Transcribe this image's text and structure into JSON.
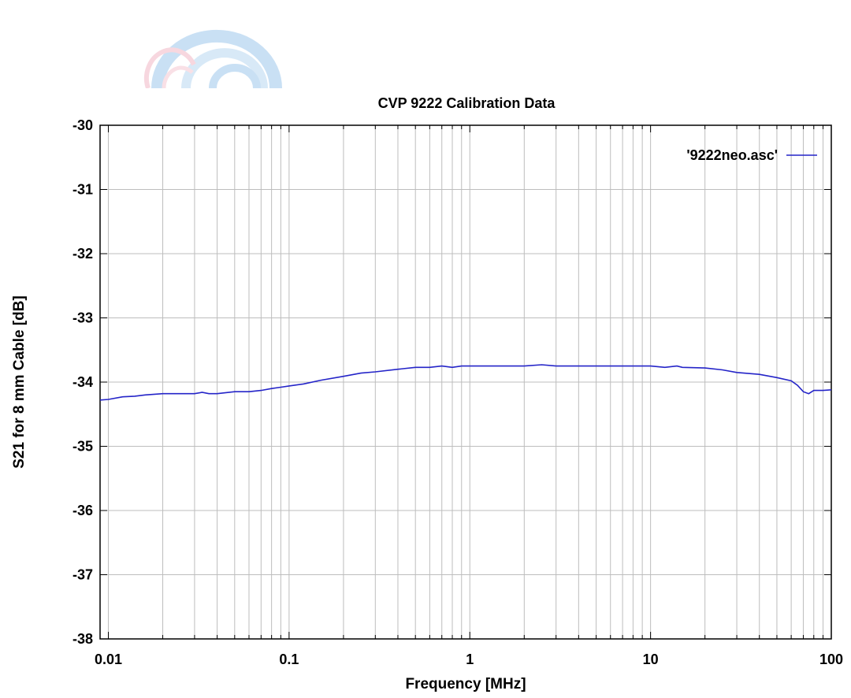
{
  "logo": {
    "name": "watermark-logo"
  },
  "chart_data": {
    "type": "line",
    "title": "CVP 9222 Calibration Data",
    "xlabel": "Frequency [MHz]",
    "ylabel": "S21 for 8 mm Cable [dB]",
    "xscale": "log",
    "xlim": [
      0.009,
      100
    ],
    "ylim": [
      -38,
      -30
    ],
    "xticks": [
      {
        "value": 0.01,
        "label": "0.01"
      },
      {
        "value": 0.1,
        "label": "0.1"
      },
      {
        "value": 1,
        "label": "1"
      },
      {
        "value": 10,
        "label": "10"
      },
      {
        "value": 100,
        "label": "100"
      }
    ],
    "yticks": [
      {
        "value": -30,
        "label": "-30"
      },
      {
        "value": -31,
        "label": "-31"
      },
      {
        "value": -32,
        "label": "-32"
      },
      {
        "value": -33,
        "label": "-33"
      },
      {
        "value": -34,
        "label": "-34"
      },
      {
        "value": -35,
        "label": "-35"
      },
      {
        "value": -36,
        "label": "-36"
      },
      {
        "value": -37,
        "label": "-37"
      },
      {
        "value": -38,
        "label": "-38"
      }
    ],
    "grid": true,
    "legend": {
      "placement": "top-right",
      "color": "#2424c8"
    },
    "series": [
      {
        "name": "'9222neo.asc'",
        "color": "#2424c8",
        "x": [
          0.009,
          0.01,
          0.012,
          0.014,
          0.016,
          0.02,
          0.025,
          0.03,
          0.033,
          0.036,
          0.04,
          0.05,
          0.06,
          0.07,
          0.08,
          0.09,
          0.1,
          0.12,
          0.15,
          0.2,
          0.25,
          0.3,
          0.4,
          0.5,
          0.6,
          0.7,
          0.8,
          0.9,
          1,
          1.5,
          2,
          2.5,
          3,
          4,
          5,
          7,
          10,
          12,
          14,
          15,
          20,
          25,
          30,
          40,
          50,
          60,
          65,
          70,
          75,
          80,
          90,
          100
        ],
        "y": [
          -34.28,
          -34.27,
          -34.23,
          -34.22,
          -34.2,
          -34.18,
          -34.18,
          -34.18,
          -34.16,
          -34.18,
          -34.18,
          -34.15,
          -34.15,
          -34.13,
          -34.1,
          -34.08,
          -34.06,
          -34.03,
          -33.97,
          -33.91,
          -33.86,
          -33.84,
          -33.8,
          -33.77,
          -33.77,
          -33.75,
          -33.77,
          -33.75,
          -33.75,
          -33.75,
          -33.75,
          -33.73,
          -33.75,
          -33.75,
          -33.75,
          -33.75,
          -33.75,
          -33.77,
          -33.75,
          -33.77,
          -33.78,
          -33.81,
          -33.85,
          -33.88,
          -33.93,
          -33.98,
          -34.05,
          -34.15,
          -34.18,
          -34.13,
          -34.13,
          -34.12
        ]
      }
    ]
  }
}
